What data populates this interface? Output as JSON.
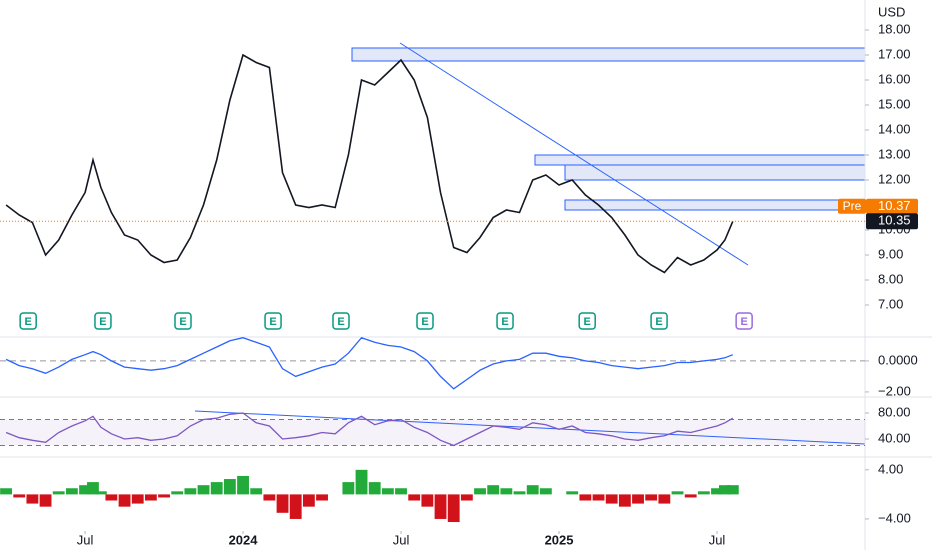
{
  "chart_data": [
    {
      "type": "line",
      "unit_label": "USD",
      "color": "#131722",
      "x": [
        3,
        3.5,
        4,
        4.5,
        5,
        5.5,
        6,
        6.3,
        6.6,
        7,
        7.5,
        8,
        8.5,
        9,
        9.5,
        10,
        10.5,
        11,
        11.5,
        12,
        12.5,
        13,
        13.5,
        14,
        14.5,
        15,
        15.5,
        16,
        16.5,
        17,
        17.5,
        18,
        18.5,
        19,
        19.5,
        20,
        20.5,
        21,
        21.5,
        22,
        22.5,
        23,
        23.5,
        24,
        24.5,
        25,
        25.5,
        26,
        26.5,
        27,
        27.5,
        28,
        28.5,
        29,
        29.5,
        30,
        30.3,
        30.6
      ],
      "values": [
        11.0,
        10.6,
        10.3,
        9.0,
        9.6,
        10.6,
        11.5,
        12.8,
        11.7,
        10.7,
        9.8,
        9.6,
        9.0,
        8.7,
        8.8,
        9.7,
        11.0,
        12.8,
        15.2,
        17.0,
        16.7,
        16.5,
        12.3,
        11.0,
        10.9,
        11.0,
        10.9,
        13.0,
        16.0,
        15.8,
        16.3,
        16.8,
        16.0,
        14.5,
        11.5,
        9.3,
        9.1,
        9.7,
        10.5,
        10.8,
        10.7,
        12.0,
        12.2,
        11.8,
        12.0,
        11.4,
        11.0,
        10.5,
        9.8,
        9.0,
        8.6,
        8.3,
        8.9,
        8.6,
        8.8,
        9.2,
        9.6,
        10.35
      ],
      "premarket": {
        "label": "Pre",
        "value": 10.37
      },
      "earnings": {
        "label": "E",
        "x": [
          3.84,
          6.68,
          9.72,
          13.14,
          15.72,
          18.91,
          21.95,
          25.07,
          27.8,
          31.03
        ]
      },
      "xlim": [
        2.77,
        35.62
      ],
      "xticks": [
        {
          "value": 6,
          "label": "Jul"
        },
        {
          "value": 12,
          "label": "2024"
        },
        {
          "value": 18,
          "label": "Jul"
        },
        {
          "value": 24,
          "label": "2025"
        },
        {
          "value": 30,
          "label": "Jul"
        }
      ],
      "ylim": [
        6.4,
        19
      ],
      "yticks": [
        {
          "value": 7,
          "label": "7.00"
        },
        {
          "value": 8,
          "label": "8.00"
        },
        {
          "value": 9,
          "label": "9.00"
        },
        {
          "value": 10,
          "label": "10.00"
        },
        {
          "value": 11,
          "label": "11.00"
        },
        {
          "value": 12,
          "label": "12.00"
        },
        {
          "value": 13,
          "label": "13.00"
        },
        {
          "value": 14,
          "label": "14.00"
        },
        {
          "value": 15,
          "label": "15.00"
        },
        {
          "value": 16,
          "label": "16.00"
        },
        {
          "value": 17,
          "label": "17.00"
        },
        {
          "value": 18,
          "label": "18.00"
        }
      ]
    },
    {
      "type": "line",
      "color": "#2962ff",
      "x": [
        3,
        3.5,
        4,
        4.5,
        5,
        5.5,
        6,
        6.3,
        6.6,
        7,
        7.5,
        8,
        8.5,
        9,
        9.5,
        10,
        10.5,
        11,
        11.5,
        12,
        12.5,
        13,
        13.5,
        14,
        14.5,
        15,
        15.5,
        16,
        16.5,
        17,
        17.5,
        18,
        18.5,
        19,
        19.5,
        20,
        20.5,
        21,
        21.5,
        22,
        22.5,
        23,
        23.5,
        24,
        24.5,
        25,
        25.5,
        26,
        26.5,
        27,
        27.5,
        28,
        28.5,
        29,
        29.5,
        30,
        30.3,
        30.6
      ],
      "values": [
        0.1,
        -0.3,
        -0.5,
        -0.8,
        -0.4,
        0.1,
        0.4,
        0.6,
        0.4,
        0.0,
        -0.4,
        -0.5,
        -0.6,
        -0.5,
        -0.3,
        0.1,
        0.5,
        0.9,
        1.3,
        1.5,
        1.2,
        0.9,
        -0.5,
        -1.0,
        -0.7,
        -0.4,
        -0.2,
        0.5,
        1.5,
        1.2,
        1.0,
        0.9,
        0.6,
        0.0,
        -1.0,
        -1.8,
        -1.2,
        -0.6,
        -0.2,
        0.0,
        0.1,
        0.5,
        0.5,
        0.3,
        0.2,
        0.0,
        -0.1,
        -0.3,
        -0.4,
        -0.5,
        -0.4,
        -0.3,
        -0.1,
        -0.1,
        0.0,
        0.1,
        0.2,
        0.4
      ],
      "ylim": [
        -2.52,
        1.35
      ],
      "yticks": [
        {
          "value": 0,
          "label": "0.0000"
        },
        {
          "value": -2,
          "label": "−2.00"
        }
      ]
    },
    {
      "type": "line",
      "color": "#7e57c2",
      "band": [
        30,
        70
      ],
      "x": [
        3,
        3.5,
        4,
        4.5,
        5,
        5.5,
        6,
        6.3,
        6.6,
        7,
        7.5,
        8,
        8.5,
        9,
        9.5,
        10,
        10.5,
        11,
        11.5,
        12,
        12.5,
        13,
        13.5,
        14,
        14.5,
        15,
        15.5,
        16,
        16.5,
        17,
        17.5,
        18,
        18.5,
        19,
        19.5,
        20,
        20.5,
        21,
        21.5,
        22,
        22.5,
        23,
        23.5,
        24,
        24.5,
        25,
        25.5,
        26,
        26.5,
        27,
        27.5,
        28,
        28.5,
        29,
        29.5,
        30,
        30.3,
        30.6
      ],
      "values": [
        50,
        42,
        38,
        35,
        50,
        60,
        68,
        75,
        58,
        48,
        40,
        42,
        38,
        40,
        45,
        60,
        70,
        72,
        78,
        80,
        65,
        60,
        40,
        42,
        45,
        50,
        48,
        65,
        75,
        62,
        68,
        70,
        58,
        50,
        38,
        30,
        40,
        50,
        60,
        58,
        55,
        65,
        62,
        55,
        60,
        50,
        48,
        45,
        40,
        38,
        42,
        45,
        52,
        50,
        55,
        60,
        65,
        72
      ],
      "ylim": [
        15.4,
        100
      ],
      "yticks": [
        {
          "value": 80,
          "label": "80.00"
        },
        {
          "value": 40,
          "label": "40.00"
        }
      ]
    },
    {
      "type": "bar",
      "colors": [
        "#22ab3a",
        "#d1121b"
      ],
      "x": [
        3,
        3.5,
        4,
        4.5,
        5,
        5.5,
        6,
        6.3,
        6.6,
        7,
        7.5,
        8,
        8.5,
        9,
        9.5,
        10,
        10.5,
        11,
        11.5,
        12,
        12.5,
        13,
        13.5,
        14,
        14.5,
        15,
        15.5,
        16,
        16.5,
        17,
        17.5,
        18,
        18.5,
        19,
        19.5,
        20,
        20.5,
        21,
        21.5,
        22,
        22.5,
        23,
        23.5,
        24,
        24.5,
        25,
        25.5,
        26,
        26.5,
        27,
        27.5,
        28,
        28.5,
        29,
        29.5,
        30,
        30.3,
        30.6
      ],
      "values": [
        1,
        -0.5,
        -1.5,
        -2,
        0.5,
        1,
        1.5,
        2,
        0.5,
        -1,
        -2,
        -1.5,
        -1,
        -0.5,
        0.5,
        1,
        1.5,
        2,
        2.5,
        3,
        1,
        -1,
        -3,
        -4,
        -2,
        -1,
        0,
        2,
        4,
        2,
        1,
        1,
        -1,
        -2,
        -4,
        -4.5,
        -1,
        1,
        1.5,
        1,
        0.5,
        1.5,
        1,
        0,
        0.5,
        -1,
        -1,
        -1.5,
        -2,
        -1.5,
        -1,
        -1.5,
        0.5,
        -0.5,
        0.5,
        1,
        1.5,
        1.5
      ],
      "ylim": [
        -5.8,
        5.6
      ],
      "yticks": [
        {
          "value": 4,
          "label": "4.00"
        },
        {
          "value": -4,
          "label": "−4.00"
        }
      ]
    }
  ]
}
